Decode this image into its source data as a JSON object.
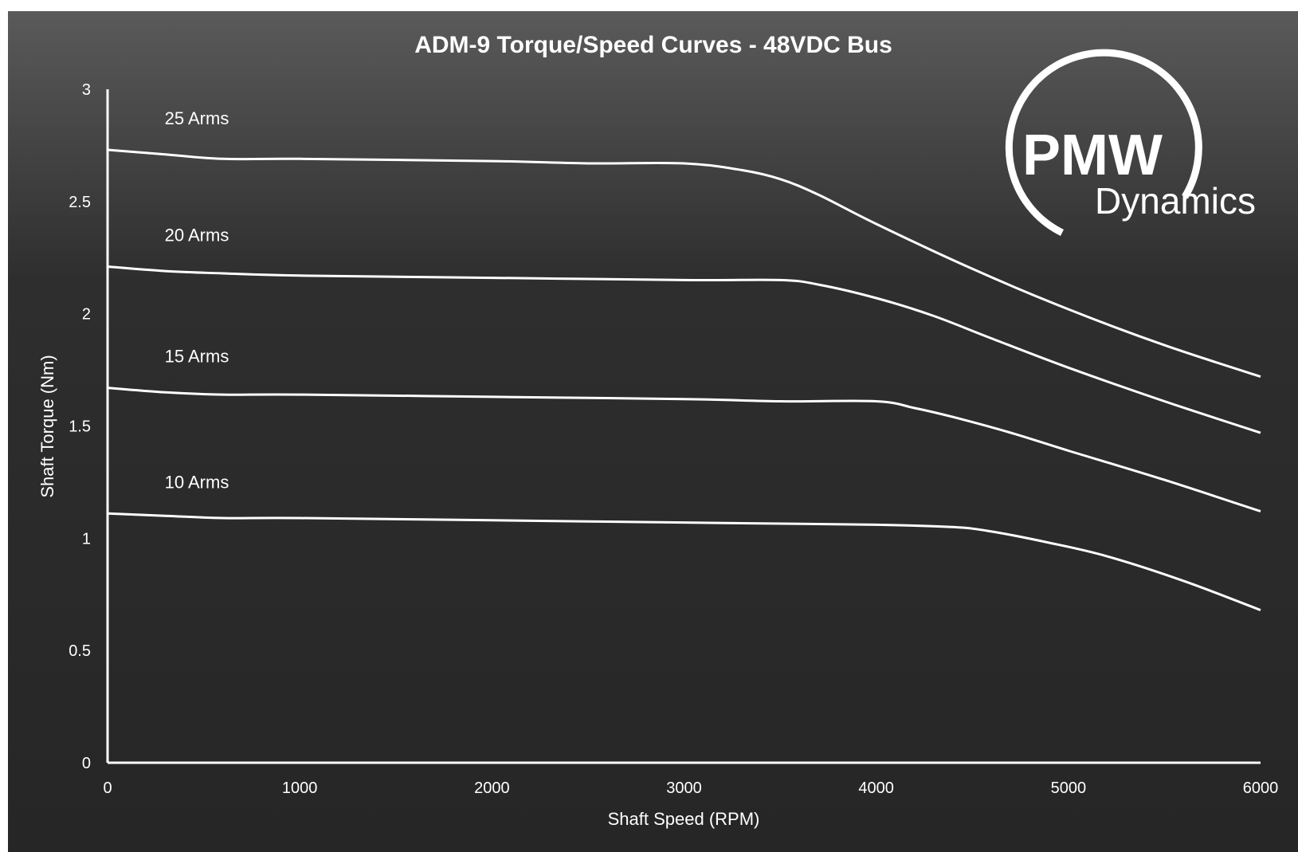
{
  "chart_data": {
    "type": "line",
    "title": "ADM-9 Torque/Speed Curves - 48VDC Bus",
    "xlabel": "Shaft Speed (RPM)",
    "ylabel": "Shaft Torque (Nm)",
    "xlim": [
      0,
      6000
    ],
    "ylim": [
      0,
      3
    ],
    "xticks": [
      0,
      1000,
      2000,
      3000,
      4000,
      5000,
      6000
    ],
    "yticks": [
      0,
      0.5,
      1,
      1.5,
      2,
      2.5,
      3
    ],
    "xtick_labels": [
      "0",
      "1000",
      "2000",
      "3000",
      "4000",
      "5000",
      "6000"
    ],
    "ytick_labels": [
      "0",
      "0.5",
      "1",
      "1.5",
      "2",
      "2.5",
      "3"
    ],
    "grid": false,
    "legend": "none",
    "line_color": "#ffffff",
    "background_gradient": [
      "#5a5a5a",
      "#262626"
    ],
    "series": [
      {
        "name": "25 Arms",
        "x": [
          0,
          300,
          600,
          1000,
          2000,
          2500,
          3000,
          3300,
          3500,
          3700,
          4000,
          4500,
          5000,
          5500,
          6000
        ],
        "y": [
          2.73,
          2.71,
          2.69,
          2.69,
          2.68,
          2.67,
          2.67,
          2.64,
          2.6,
          2.53,
          2.4,
          2.2,
          2.02,
          1.86,
          1.72
        ]
      },
      {
        "name": "20 Arms",
        "x": [
          0,
          300,
          600,
          1000,
          2000,
          3000,
          3500,
          3700,
          4000,
          4300,
          4600,
          5000,
          5500,
          6000
        ],
        "y": [
          2.21,
          2.19,
          2.18,
          2.17,
          2.16,
          2.15,
          2.15,
          2.13,
          2.07,
          1.99,
          1.89,
          1.76,
          1.61,
          1.47
        ]
      },
      {
        "name": "15 Arms",
        "x": [
          0,
          300,
          600,
          1000,
          2000,
          3000,
          3500,
          4000,
          4200,
          4400,
          4700,
          5000,
          5500,
          6000
        ],
        "y": [
          1.67,
          1.65,
          1.64,
          1.64,
          1.63,
          1.62,
          1.61,
          1.61,
          1.58,
          1.54,
          1.47,
          1.39,
          1.26,
          1.12
        ]
      },
      {
        "name": "10 Arms",
        "x": [
          0,
          300,
          600,
          1000,
          2000,
          3000,
          4000,
          4400,
          4600,
          4900,
          5200,
          5600,
          6000
        ],
        "y": [
          1.11,
          1.1,
          1.09,
          1.09,
          1.08,
          1.07,
          1.06,
          1.05,
          1.03,
          0.98,
          0.92,
          0.81,
          0.68
        ]
      }
    ],
    "logo": {
      "line1": "PMW",
      "line2": "Dynamics",
      "icon": "circle-logo"
    }
  }
}
